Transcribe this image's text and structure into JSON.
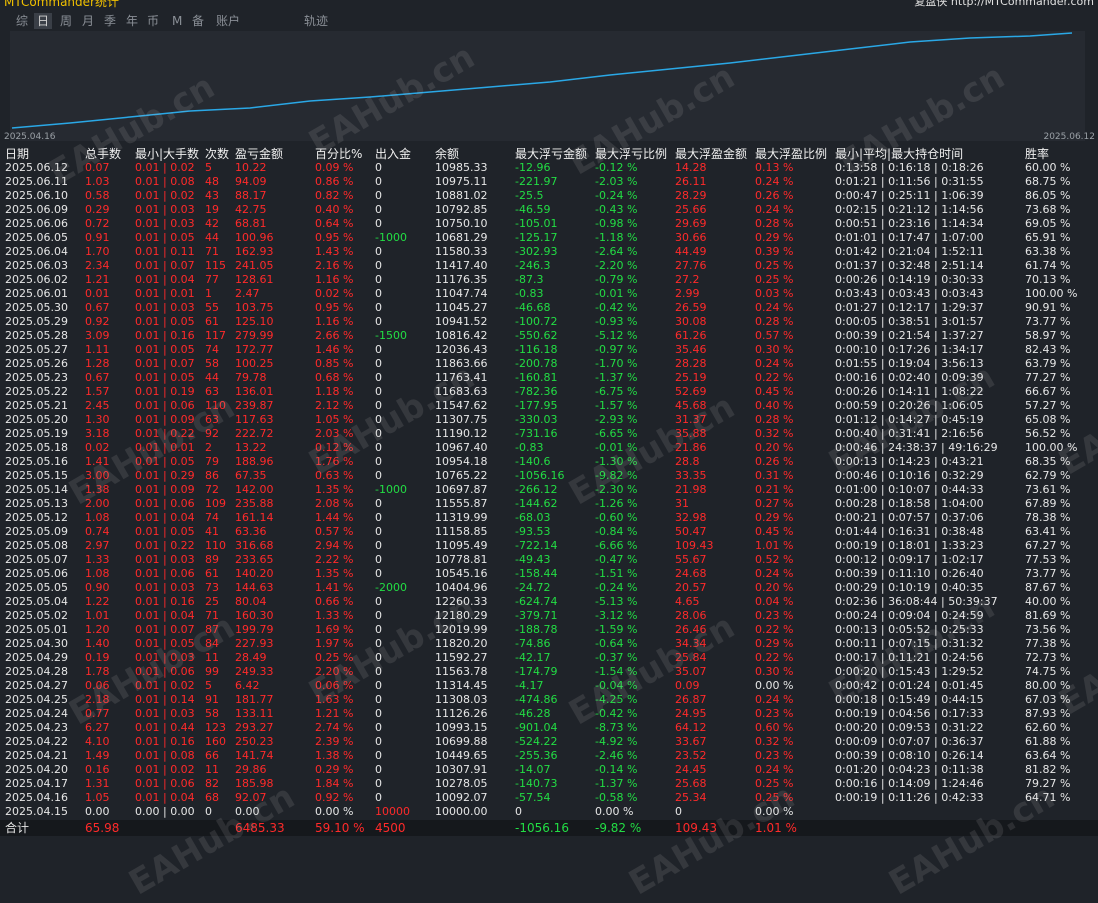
{
  "header": {
    "title": "MTCommander统计",
    "right": "复盘侠 http://MTCommander.com"
  },
  "tabs": [
    "综",
    "日",
    "周",
    "月",
    "季",
    "年",
    "币",
    "M",
    "备",
    "账户",
    "轨迹"
  ],
  "chart": {
    "start_date": "2025.04.16",
    "end_date": "2025.06.12"
  },
  "watermark": "EAHub.cn",
  "table": {
    "columns": [
      "日期",
      "总手数",
      "最小|大手数",
      "次数",
      "盈亏金额",
      "百分比%",
      "出入金",
      "余额",
      "最大浮亏金额",
      "最大浮亏比例",
      "最大浮盈金额",
      "最大浮盈比例",
      "最小|平均|最大持仓时间",
      "胜率"
    ],
    "rows": [
      [
        "2025.06.12",
        "0.07",
        "0.01 | 0.02",
        "5",
        "10.22",
        "0.09 %",
        "0",
        "10985.33",
        "-12.96",
        "-0.12 %",
        "14.28",
        "0.13 %",
        "0:13:58 | 0:16:18 | 0:18:26",
        "60.00 %"
      ],
      [
        "2025.06.11",
        "1.03",
        "0.01 | 0.08",
        "48",
        "94.09",
        "0.86 %",
        "0",
        "10975.11",
        "-221.97",
        "-2.03 %",
        "26.11",
        "0.24 %",
        "0:01:21 | 0:11:56 | 0:31:55",
        "68.75 %"
      ],
      [
        "2025.06.10",
        "0.58",
        "0.01 | 0.02",
        "43",
        "88.17",
        "0.82 %",
        "0",
        "10881.02",
        "-25.5",
        "-0.24 %",
        "28.29",
        "0.26 %",
        "0:00:47 | 0:25:11 | 1:06:39",
        "86.05 %"
      ],
      [
        "2025.06.09",
        "0.29",
        "0.01 | 0.03",
        "19",
        "42.75",
        "0.40 %",
        "0",
        "10792.85",
        "-46.59",
        "-0.43 %",
        "25.66",
        "0.24 %",
        "0:02:15 | 0:21:12 | 1:14:56",
        "73.68 %"
      ],
      [
        "2025.06.06",
        "0.72",
        "0.01 | 0.03",
        "42",
        "68.81",
        "0.64 %",
        "0",
        "10750.10",
        "-105.01",
        "-0.98 %",
        "29.69",
        "0.28 %",
        "0:00:51 | 0:23:16 | 1:14:34",
        "69.05 %"
      ],
      [
        "2025.06.05",
        "0.91",
        "0.01 | 0.05",
        "44",
        "100.96",
        "0.95 %",
        "-1000",
        "10681.29",
        "-125.17",
        "-1.18 %",
        "30.66",
        "0.29 %",
        "0:01:01 | 0:17:47 | 1:07:00",
        "65.91 %"
      ],
      [
        "2025.06.04",
        "1.70",
        "0.01 | 0.11",
        "71",
        "162.93",
        "1.43 %",
        "0",
        "11580.33",
        "-302.93",
        "-2.64 %",
        "44.49",
        "0.39 %",
        "0:01:42 | 0:21:04 | 1:52:11",
        "63.38 %"
      ],
      [
        "2025.06.03",
        "2.34",
        "0.01 | 0.07",
        "115",
        "241.05",
        "2.16 %",
        "0",
        "11417.40",
        "-246.3",
        "-2.20 %",
        "27.76",
        "0.25 %",
        "0:01:37 | 0:32:48 | 2:51:14",
        "61.74 %"
      ],
      [
        "2025.06.02",
        "1.21",
        "0.01 | 0.04",
        "77",
        "128.61",
        "1.16 %",
        "0",
        "11176.35",
        "-87.3",
        "-0.79 %",
        "27.2",
        "0.25 %",
        "0:00:26 | 0:14:19 | 0:30:33",
        "70.13 %"
      ],
      [
        "2025.06.01",
        "0.01",
        "0.01 | 0.01",
        "1",
        "2.47",
        "0.02 %",
        "0",
        "11047.74",
        "-0.83",
        "-0.01 %",
        "2.99",
        "0.03 %",
        "0:03:43 | 0:03:43 | 0:03:43",
        "100.00 %"
      ],
      [
        "2025.05.30",
        "0.67",
        "0.01 | 0.03",
        "55",
        "103.75",
        "0.95 %",
        "0",
        "11045.27",
        "-46.68",
        "-0.42 %",
        "26.59",
        "0.24 %",
        "0:01:27 | 0:12:17 | 1:29:37",
        "90.91 %"
      ],
      [
        "2025.05.29",
        "0.92",
        "0.01 | 0.05",
        "61",
        "125.10",
        "1.16 %",
        "0",
        "10941.52",
        "-100.72",
        "-0.93 %",
        "30.08",
        "0.28 %",
        "0:00:05 | 0:38:51 | 3:01:57",
        "73.77 %"
      ],
      [
        "2025.05.28",
        "3.09",
        "0.01 | 0.16",
        "117",
        "279.99",
        "2.66 %",
        "-1500",
        "10816.42",
        "-550.62",
        "-5.12 %",
        "61.26",
        "0.57 %",
        "0:00:39 | 0:21:54 | 1:37:27",
        "58.97 %"
      ],
      [
        "2025.05.27",
        "1.11",
        "0.01 | 0.05",
        "74",
        "172.77",
        "1.46 %",
        "0",
        "12036.43",
        "-116.18",
        "-0.97 %",
        "35.46",
        "0.30 %",
        "0:00:10 | 0:17:26 | 1:34:17",
        "82.43 %"
      ],
      [
        "2025.05.26",
        "1.28",
        "0.01 | 0.07",
        "58",
        "100.25",
        "0.85 %",
        "0",
        "11863.66",
        "-200.78",
        "-1.70 %",
        "28.28",
        "0.24 %",
        "0:01:55 | 0:19:04 | 3:56:13",
        "63.79 %"
      ],
      [
        "2025.05.23",
        "0.67",
        "0.01 | 0.05",
        "44",
        "79.78",
        "0.68 %",
        "0",
        "11763.41",
        "-160.81",
        "-1.37 %",
        "25.19",
        "0.22 %",
        "0:00:16 | 0:02:40 | 0:09:39",
        "77.27 %"
      ],
      [
        "2025.05.22",
        "1.57",
        "0.01 | 0.19",
        "63",
        "136.01",
        "1.18 %",
        "0",
        "11683.63",
        "-782.36",
        "-6.75 %",
        "52.69",
        "0.45 %",
        "0:00:26 | 0:14:11 | 1:08:22",
        "66.67 %"
      ],
      [
        "2025.05.21",
        "2.45",
        "0.01 | 0.06",
        "110",
        "239.87",
        "2.12 %",
        "0",
        "11547.62",
        "-177.95",
        "-1.57 %",
        "45.68",
        "0.40 %",
        "0:00:59 | 0:20:26 | 1:06:05",
        "57.27 %"
      ],
      [
        "2025.05.20",
        "1.30",
        "0.01 | 0.09",
        "63",
        "117.63",
        "1.05 %",
        "0",
        "11307.75",
        "-330.03",
        "-2.93 %",
        "31.37",
        "0.28 %",
        "0:01:12 | 0:14:27 | 0:45:19",
        "65.08 %"
      ],
      [
        "2025.05.19",
        "3.18",
        "0.01 | 0.22",
        "92",
        "222.72",
        "2.03 %",
        "0",
        "11190.12",
        "-731.16",
        "-6.65 %",
        "35.88",
        "0.32 %",
        "0:00:40 | 0:31:41 | 2:16:56",
        "56.52 %"
      ],
      [
        "2025.05.18",
        "0.02",
        "0.01 | 0.01",
        "2",
        "13.22",
        "0.12 %",
        "0",
        "10967.40",
        "-0.83",
        "-0.01 %",
        "21.86",
        "0.20 %",
        "0:00:46 | 24:38:37 | 49:16:29",
        "100.00 %"
      ],
      [
        "2025.05.16",
        "1.41",
        "0.01 | 0.05",
        "79",
        "188.96",
        "1.76 %",
        "0",
        "10954.18",
        "-140.6",
        "-1.30 %",
        "28.8",
        "0.26 %",
        "0:00:13 | 0:14:23 | 0:43:21",
        "68.35 %"
      ],
      [
        "2025.05.15",
        "3.00",
        "0.01 | 0.29",
        "86",
        "67.35",
        "0.63 %",
        "0",
        "10765.22",
        "-1056.16",
        "-9.82 %",
        "33.35",
        "0.31 %",
        "0:00:46 | 0:10:16 | 0:32:29",
        "62.79 %"
      ],
      [
        "2025.05.14",
        "1.38",
        "0.01 | 0.09",
        "72",
        "142.00",
        "1.35 %",
        "-1000",
        "10697.87",
        "-266.12",
        "-2.30 %",
        "21.98",
        "0.21 %",
        "0:01:00 | 0:10:07 | 0:44:33",
        "73.61 %"
      ],
      [
        "2025.05.13",
        "2.00",
        "0.01 | 0.06",
        "109",
        "235.88",
        "2.08 %",
        "0",
        "11555.87",
        "-144.62",
        "-1.26 %",
        "31",
        "0.27 %",
        "0:00:28 | 0:18:58 | 1:04:00",
        "67.89 %"
      ],
      [
        "2025.05.12",
        "1.08",
        "0.01 | 0.04",
        "74",
        "161.14",
        "1.44 %",
        "0",
        "11319.99",
        "-68.03",
        "-0.60 %",
        "32.98",
        "0.29 %",
        "0:00:21 | 0:07:57 | 0:37:06",
        "78.38 %"
      ],
      [
        "2025.05.09",
        "0.74",
        "0.01 | 0.05",
        "41",
        "63.36",
        "0.57 %",
        "0",
        "11158.85",
        "-93.53",
        "-0.84 %",
        "50.47",
        "0.45 %",
        "0:01:44 | 0:16:31 | 0:38:48",
        "63.41 %"
      ],
      [
        "2025.05.08",
        "2.97",
        "0.01 | 0.22",
        "110",
        "316.68",
        "2.94 %",
        "0",
        "11095.49",
        "-722.14",
        "-6.66 %",
        "109.43",
        "1.01 %",
        "0:00:19 | 0:18:01 | 1:33:23",
        "67.27 %"
      ],
      [
        "2025.05.07",
        "1.33",
        "0.01 | 0.03",
        "89",
        "233.65",
        "2.22 %",
        "0",
        "10778.81",
        "-49.43",
        "-0.47 %",
        "55.67",
        "0.52 %",
        "0:00:12 | 0:09:17 | 1:02:17",
        "77.53 %"
      ],
      [
        "2025.05.06",
        "1.08",
        "0.01 | 0.06",
        "61",
        "140.20",
        "1.35 %",
        "0",
        "10545.16",
        "-158.44",
        "-1.51 %",
        "24.68",
        "0.24 %",
        "0:00:39 | 0:11:10 | 0:26:40",
        "73.77 %"
      ],
      [
        "2025.05.05",
        "0.90",
        "0.01 | 0.03",
        "73",
        "144.63",
        "1.41 %",
        "-2000",
        "10404.96",
        "-24.72",
        "-0.24 %",
        "20.57",
        "0.20 %",
        "0:00:29 | 0:10:19 | 0:40:35",
        "87.67 %"
      ],
      [
        "2025.05.04",
        "1.22",
        "0.01 | 0.16",
        "25",
        "80.04",
        "0.66 %",
        "0",
        "12260.33",
        "-624.74",
        "-5.13 %",
        "4.65",
        "0.04 %",
        "0:02:36 | 36:08:44 | 50:39:37",
        "40.00 %"
      ],
      [
        "2025.05.02",
        "1.01",
        "0.01 | 0.04",
        "71",
        "160.30",
        "1.33 %",
        "0",
        "12180.29",
        "-379.71",
        "-3.12 %",
        "28.06",
        "0.23 %",
        "0:00:24 | 0:09:04 | 0:24:59",
        "81.69 %"
      ],
      [
        "2025.05.01",
        "1.20",
        "0.01 | 0.07",
        "87",
        "199.79",
        "1.69 %",
        "0",
        "12019.99",
        "-188.78",
        "-1.59 %",
        "26.46",
        "0.22 %",
        "0:00:13 | 0:05:52 | 0:25:33",
        "73.56 %"
      ],
      [
        "2025.04.30",
        "1.40",
        "0.01 | 0.05",
        "84",
        "227.93",
        "1.97 %",
        "0",
        "11820.20",
        "-74.86",
        "-0.64 %",
        "34.34",
        "0.29 %",
        "0:00:11 | 0:07:15 | 0:31:32",
        "77.38 %"
      ],
      [
        "2025.04.29",
        "0.19",
        "0.01 | 0.03",
        "11",
        "28.49",
        "0.25 %",
        "0",
        "11592.27",
        "-42.17",
        "-0.37 %",
        "25.84",
        "0.22 %",
        "0:00:17 | 0:11:21 | 0:24:56",
        "72.73 %"
      ],
      [
        "2025.04.28",
        "1.78",
        "0.01 | 0.06",
        "99",
        "249.33",
        "2.20 %",
        "0",
        "11563.78",
        "-174.79",
        "-1.54 %",
        "35.07",
        "0.30 %",
        "0:00:20 | 0:15:43 | 1:29:52",
        "74.75 %"
      ],
      [
        "2025.04.27",
        "0.06",
        "0.01 | 0.02",
        "5",
        "6.42",
        "0.06 %",
        "0",
        "11314.45",
        "-4.17",
        "-0.04 %",
        "0.09",
        "0.00 %",
        "0:00:42 | 0:01:24 | 0:01:45",
        "80.00 %"
      ],
      [
        "2025.04.25",
        "2.18",
        "0.01 | 0.14",
        "91",
        "181.77",
        "1.63 %",
        "0",
        "11308.03",
        "-474.86",
        "-4.25 %",
        "26.87",
        "0.24 %",
        "0:00:18 | 0:15:49 | 0:44:15",
        "67.03 %"
      ],
      [
        "2025.04.24",
        "0.77",
        "0.01 | 0.03",
        "58",
        "133.11",
        "1.21 %",
        "0",
        "11126.26",
        "-46.28",
        "-0.42 %",
        "24.95",
        "0.23 %",
        "0:00:19 | 0:04:56 | 0:17:33",
        "87.93 %"
      ],
      [
        "2025.04.23",
        "6.27",
        "0.01 | 0.44",
        "123",
        "293.27",
        "2.74 %",
        "0",
        "10993.15",
        "-901.04",
        "-8.73 %",
        "64.12",
        "0.60 %",
        "0:00:20 | 0:09:53 | 0:31:22",
        "62.60 %"
      ],
      [
        "2025.04.22",
        "4.10",
        "0.01 | 0.16",
        "160",
        "250.23",
        "2.39 %",
        "0",
        "10699.88",
        "-524.22",
        "-4.92 %",
        "33.67",
        "0.32 %",
        "0:00:09 | 0:07:07 | 0:36:37",
        "61.88 %"
      ],
      [
        "2025.04.21",
        "1.49",
        "0.01 | 0.08",
        "66",
        "141.74",
        "1.38 %",
        "0",
        "10449.65",
        "-255.36",
        "-2.46 %",
        "23.52",
        "0.23 %",
        "0:00:39 | 0:08:10 | 0:26:14",
        "63.64 %"
      ],
      [
        "2025.04.20",
        "0.16",
        "0.01 | 0.02",
        "11",
        "29.86",
        "0.29 %",
        "0",
        "10307.91",
        "-14.07",
        "-0.14 %",
        "24.45",
        "0.24 %",
        "0:01:20 | 0:04:23 | 0:11:38",
        "81.82 %"
      ],
      [
        "2025.04.17",
        "1.31",
        "0.01 | 0.06",
        "82",
        "185.98",
        "1.84 %",
        "0",
        "10278.05",
        "-140.73",
        "-1.37 %",
        "25.68",
        "0.25 %",
        "0:00:16 | 0:14:09 | 1:24:46",
        "79.27 %"
      ],
      [
        "2025.04.16",
        "1.05",
        "0.01 | 0.04",
        "68",
        "92.07",
        "0.92 %",
        "0",
        "10092.07",
        "-57.54",
        "-0.58 %",
        "25.34",
        "0.25 %",
        "0:00:19 | 0:11:26 | 0:42:33",
        "64.71 %"
      ],
      [
        "2025.04.15",
        "0.00",
        "0.00 | 0.00",
        "0",
        "0.00",
        "0.00 %",
        "10000",
        "10000.00",
        "0",
        "0.00 %",
        "0",
        "0.00 %"
      ]
    ],
    "total": [
      "合计",
      "65.98",
      null,
      null,
      "6485.33",
      "59.10 %",
      "4500",
      null,
      "-1056.16",
      "-9.82 %",
      "109.43",
      "1.01 %"
    ]
  }
}
